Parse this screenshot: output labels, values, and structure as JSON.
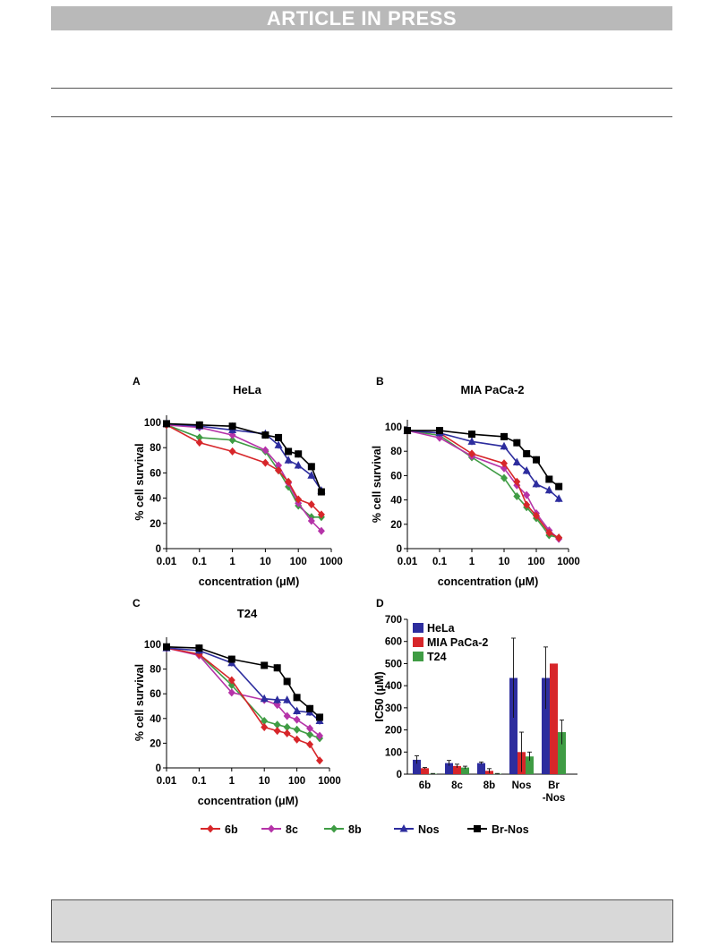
{
  "header": {
    "banner_text": "ARTICLE IN PRESS"
  },
  "legend": {
    "entries": [
      {
        "name": "6b",
        "color": "#d7262a",
        "marker": "diamond"
      },
      {
        "name": "8c",
        "color": "#b533a8",
        "marker": "diamond"
      },
      {
        "name": "8b",
        "color": "#3f9c44",
        "marker": "diamond"
      },
      {
        "name": "Nos",
        "color": "#2d2d9e",
        "marker": "triangle"
      },
      {
        "name": "Br-Nos",
        "color": "#000000",
        "marker": "square"
      }
    ]
  },
  "chart_data": [
    {
      "panel": "A",
      "title": "HeLa",
      "type": "line",
      "xlabel": "concentration (μM)",
      "ylabel": "% cell survival",
      "xscale": "log",
      "xlim": [
        0.01,
        1000
      ],
      "ylim": [
        0,
        100
      ],
      "xticks": [
        "0.01",
        "0.1",
        "1",
        "10",
        "100",
        "1000"
      ],
      "yticks": [
        "0",
        "20",
        "40",
        "60",
        "80",
        "100"
      ],
      "series": [
        {
          "name": "6b",
          "x": [
            0.01,
            0.1,
            1,
            10,
            25,
            50,
            100,
            250,
            500
          ],
          "y": [
            98,
            84,
            77,
            68,
            62,
            53,
            39,
            35,
            27
          ]
        },
        {
          "name": "8c",
          "x": [
            0.01,
            0.1,
            1,
            10,
            25,
            50,
            100,
            250,
            500
          ],
          "y": [
            98,
            96,
            90,
            78,
            66,
            52,
            36,
            22,
            14
          ]
        },
        {
          "name": "8b",
          "x": [
            0.01,
            0.1,
            1,
            10,
            25,
            50,
            100,
            250,
            500
          ],
          "y": [
            98,
            88,
            86,
            77,
            62,
            49,
            34,
            25,
            25
          ]
        },
        {
          "name": "Nos",
          "x": [
            0.01,
            0.1,
            1,
            10,
            25,
            50,
            100,
            250,
            500
          ],
          "y": [
            99,
            97,
            94,
            91,
            82,
            70,
            66,
            58,
            46
          ]
        },
        {
          "name": "Br-Nos",
          "x": [
            0.01,
            0.1,
            1,
            10,
            25,
            50,
            100,
            250,
            500
          ],
          "y": [
            99,
            98,
            97,
            90,
            88,
            77,
            75,
            65,
            45
          ]
        }
      ]
    },
    {
      "panel": "B",
      "title": "MIA PaCa-2",
      "type": "line",
      "xlabel": "concentration (μM)",
      "ylabel": "% cell survival",
      "xscale": "log",
      "xlim": [
        0.01,
        1000
      ],
      "ylim": [
        0,
        100
      ],
      "xticks": [
        "0.01",
        "0.1",
        "1",
        "10",
        "100",
        "1000"
      ],
      "yticks": [
        "0",
        "20",
        "40",
        "60",
        "80",
        "100"
      ],
      "series": [
        {
          "name": "6b",
          "x": [
            0.01,
            0.1,
            1,
            10,
            25,
            50,
            100,
            250,
            500
          ],
          "y": [
            97,
            95,
            78,
            70,
            55,
            36,
            27,
            13,
            9
          ]
        },
        {
          "name": "8c",
          "x": [
            0.01,
            0.1,
            1,
            10,
            25,
            50,
            100,
            250,
            500
          ],
          "y": [
            97,
            91,
            76,
            66,
            52,
            44,
            29,
            15,
            8
          ]
        },
        {
          "name": "8b",
          "x": [
            0.01,
            0.1,
            1,
            10,
            25,
            50,
            100,
            250,
            500
          ],
          "y": [
            97,
            93,
            75,
            58,
            43,
            34,
            25,
            11,
            9
          ]
        },
        {
          "name": "Nos",
          "x": [
            0.01,
            0.1,
            1,
            10,
            25,
            50,
            100,
            250,
            500
          ],
          "y": [
            97,
            95,
            88,
            84,
            71,
            64,
            53,
            48,
            41
          ]
        },
        {
          "name": "Br-Nos",
          "x": [
            0.01,
            0.1,
            1,
            10,
            25,
            50,
            100,
            250,
            500
          ],
          "y": [
            97,
            97,
            94,
            92,
            87,
            78,
            73,
            57,
            51
          ]
        }
      ]
    },
    {
      "panel": "C",
      "title": "T24",
      "type": "line",
      "xlabel": "concentration (μM)",
      "ylabel": "% cell survival",
      "xscale": "log",
      "xlim": [
        0.01,
        1000
      ],
      "ylim": [
        0,
        100
      ],
      "xticks": [
        "0.01",
        "0.1",
        "1",
        "10",
        "100",
        "1000"
      ],
      "yticks": [
        "0",
        "20",
        "40",
        "60",
        "80",
        "100"
      ],
      "series": [
        {
          "name": "6b",
          "x": [
            0.01,
            0.1,
            1,
            10,
            25,
            50,
            100,
            250,
            500
          ],
          "y": [
            97,
            92,
            71,
            33,
            30,
            28,
            23,
            19,
            6
          ]
        },
        {
          "name": "8c",
          "x": [
            0.01,
            0.1,
            1,
            10,
            25,
            50,
            100,
            250,
            500
          ],
          "y": [
            97,
            91,
            61,
            55,
            51,
            42,
            39,
            32,
            26
          ]
        },
        {
          "name": "8b",
          "x": [
            0.01,
            0.1,
            1,
            10,
            25,
            50,
            100,
            250,
            500
          ],
          "y": [
            97,
            92,
            67,
            38,
            35,
            33,
            31,
            27,
            24
          ]
        },
        {
          "name": "Nos",
          "x": [
            0.01,
            0.1,
            1,
            10,
            25,
            50,
            100,
            250,
            500
          ],
          "y": [
            97,
            95,
            85,
            56,
            55,
            55,
            46,
            45,
            38
          ]
        },
        {
          "name": "Br-Nos",
          "x": [
            0.01,
            0.1,
            1,
            10,
            25,
            50,
            100,
            250,
            500
          ],
          "y": [
            98,
            97,
            88,
            83,
            81,
            70,
            57,
            48,
            41
          ]
        }
      ]
    },
    {
      "panel": "D",
      "type": "bar",
      "ylabel": "IC50 (μM)",
      "ylim": [
        0,
        700
      ],
      "yticks": [
        "0",
        "100",
        "200",
        "300",
        "400",
        "500",
        "600",
        "700"
      ],
      "categories": [
        "6b",
        "8c",
        "8b",
        "Nos",
        "Br\n-Nos"
      ],
      "legend_position": "top-left",
      "series": [
        {
          "name": "HeLa",
          "color": "#2d2d9e",
          "values": [
            65,
            50,
            50,
            435,
            435
          ],
          "errors": [
            18,
            12,
            5,
            180,
            140
          ]
        },
        {
          "name": "MIA PaCa-2",
          "color": "#d7262a",
          "values": [
            27,
            37,
            15,
            100,
            500
          ],
          "errors": [
            3,
            8,
            10,
            90,
            0
          ]
        },
        {
          "name": "T24",
          "color": "#3f9c44",
          "values": [
            2,
            30,
            2,
            80,
            190
          ],
          "errors": [
            1,
            6,
            1,
            20,
            55
          ]
        }
      ]
    }
  ]
}
